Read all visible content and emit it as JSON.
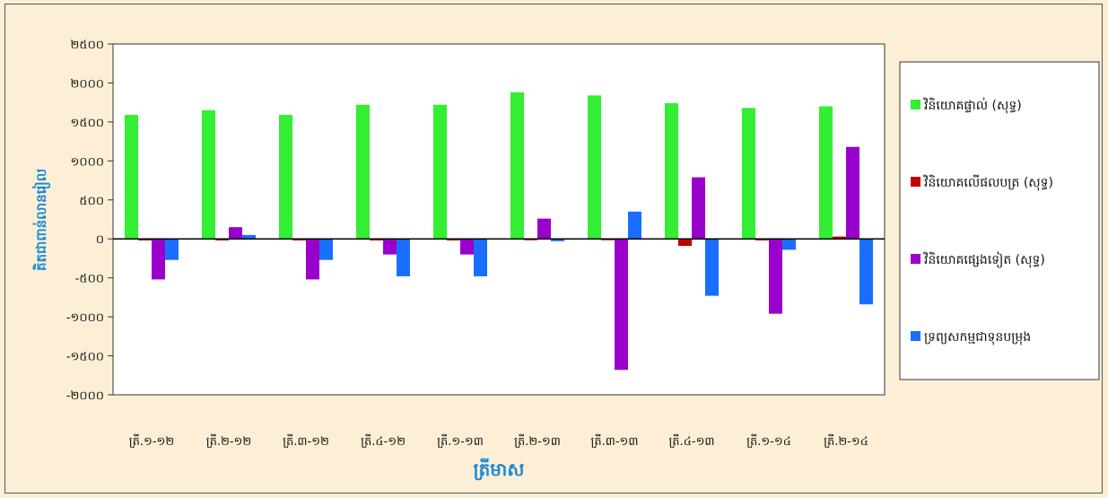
{
  "chart_data": {
    "type": "bar",
    "xlabel": "ត្រីមាស",
    "ylabel": "គិតជាពាន់លានរៀល",
    "ylim": [
      -2000,
      2500
    ],
    "yticks": [
      "-២០០០",
      "-១៥០០",
      "-១០០០",
      "-៥០០",
      "០",
      "៥០០",
      "១០០០",
      "១៥០០",
      "២០០០",
      "២៥០០"
    ],
    "categories": [
      "ត្រី.១-១២",
      "ត្រី.២-១២",
      "ត្រី.៣-១២",
      "ត្រី.៤-១២",
      "ត្រី.១-១៣",
      "ត្រី.២-១៣",
      "ត្រី.៣-១៣",
      "ត្រី.៤-១៣",
      "ត្រី.១-១៤",
      "ត្រី.២-១៤"
    ],
    "series": [
      {
        "name": "វិនិយោគផ្ទាល់ (សុទ្ធ)",
        "color": "#33EE33",
        "values": [
          1590,
          1650,
          1590,
          1720,
          1720,
          1880,
          1840,
          1740,
          1680,
          1700
        ]
      },
      {
        "name": "វិនិយោគលើផលបត្រ (សុទ្ធ)",
        "color": "#C00000",
        "values": [
          -20,
          -20,
          -20,
          -20,
          -20,
          -10,
          -10,
          -90,
          -20,
          30
        ]
      },
      {
        "name": "វិនិយោគផ្សេងទៀត (សុទ្ធ)",
        "color": "#9900CC",
        "values": [
          -520,
          150,
          -520,
          -200,
          -200,
          260,
          -1680,
          790,
          -960,
          1180
        ]
      },
      {
        "name": "ទ្រព្យសកម្មជាទុនបម្រុង",
        "color": "#1A6EFF",
        "values": [
          -270,
          50,
          -270,
          -480,
          -480,
          -30,
          350,
          -730,
          -140,
          -840
        ]
      }
    ],
    "legend": "right",
    "grid": false
  }
}
